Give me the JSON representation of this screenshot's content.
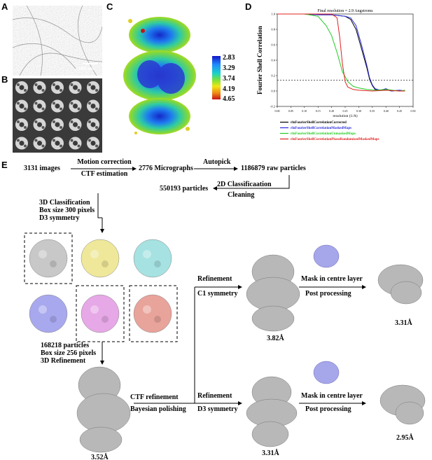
{
  "panels": {
    "a": "A",
    "b": "B",
    "c": "C",
    "d": "D",
    "e": "E"
  },
  "panel_a": {
    "scale_bar_label": "100 nm"
  },
  "panel_c": {
    "colorbar_ticks": [
      "2.83",
      "3.29",
      "3.74",
      "4.19",
      "4.65"
    ],
    "colors": [
      "#1414c8",
      "#1e8cff",
      "#19d2c8",
      "#78e13c",
      "#f0e614",
      "#f08c14",
      "#c81414"
    ]
  },
  "panel_d": {
    "title": "Final resolution = 2.9 Angstroms",
    "ylabel": "Fourier Shell Correlation",
    "xlabel": "resolution (1/A)",
    "xticks": [
      "0.00",
      "0.05",
      "0.10",
      "0.15",
      "0.20",
      "0.25",
      "0.30",
      "0.35",
      "0.40",
      "0.45",
      "0.50"
    ],
    "yticks": [
      "1.0",
      "0.8",
      "0.6",
      "0.4",
      "0.2",
      "0.0",
      "-0.2"
    ],
    "legend": [
      {
        "name": "rlnFourierShellCorrelationCorrected",
        "color": "#000000"
      },
      {
        "name": "rlnFourierShellCorrelationMaskedMaps",
        "color": "#2a2ae0"
      },
      {
        "name": "rlnFourierShellCorrelationUnmaskedMaps",
        "color": "#22cc22"
      },
      {
        "name": "rlnFourierShellCorrelationPhaseRandomizedMaskedMaps",
        "color": "#e02020"
      }
    ]
  },
  "chart_data": {
    "type": "line",
    "title": "Final resolution = 2.9 Angstroms",
    "xlabel": "resolution (1/A)",
    "ylabel": "Fourier Shell Correlation",
    "xlim": [
      0.0,
      0.5
    ],
    "ylim": [
      -0.2,
      1.0
    ],
    "threshold": 0.143,
    "series": [
      {
        "name": "rlnFourierShellCorrelationCorrected",
        "color": "#000000",
        "x": [
          0,
          0.05,
          0.1,
          0.15,
          0.2,
          0.25,
          0.27,
          0.29,
          0.31,
          0.33,
          0.34,
          0.35,
          0.36,
          0.38,
          0.4,
          0.42,
          0.45,
          0.47
        ],
        "y": [
          1,
          1,
          1,
          0.99,
          0.99,
          0.97,
          0.93,
          0.8,
          0.55,
          0.3,
          0.15,
          0.07,
          0.02,
          0.01,
          0.02,
          0.0,
          0.01,
          0.0
        ]
      },
      {
        "name": "rlnFourierShellCorrelationMaskedMaps",
        "color": "#2a2ae0",
        "x": [
          0,
          0.05,
          0.1,
          0.15,
          0.2,
          0.25,
          0.27,
          0.29,
          0.31,
          0.33,
          0.34,
          0.35,
          0.36,
          0.38,
          0.4,
          0.42,
          0.45,
          0.47
        ],
        "y": [
          1,
          1,
          1,
          0.99,
          0.99,
          0.97,
          0.95,
          0.85,
          0.6,
          0.33,
          0.17,
          0.08,
          0.03,
          0.01,
          0.03,
          0.0,
          0.01,
          0.0
        ]
      },
      {
        "name": "rlnFourierShellCorrelationUnmaskedMaps",
        "color": "#22cc22",
        "x": [
          0,
          0.05,
          0.1,
          0.15,
          0.18,
          0.2,
          0.22,
          0.24,
          0.26,
          0.28,
          0.3,
          0.33,
          0.36,
          0.4,
          0.45,
          0.47
        ],
        "y": [
          1,
          1,
          1,
          0.97,
          0.85,
          0.72,
          0.5,
          0.25,
          0.12,
          0.06,
          0.04,
          0.02,
          0.01,
          0.02,
          0.0,
          0.01
        ]
      },
      {
        "name": "rlnFourierShellCorrelationPhaseRandomizedMaskedMaps",
        "color": "#e02020",
        "x": [
          0,
          0.1,
          0.2,
          0.22,
          0.23,
          0.24,
          0.25,
          0.26,
          0.28,
          0.3,
          0.35,
          0.4,
          0.45,
          0.47
        ],
        "y": [
          1,
          1,
          1,
          0.95,
          0.7,
          0.35,
          0.12,
          0.05,
          0.02,
          0.01,
          0.0,
          0.01,
          0.0,
          0.0
        ]
      }
    ]
  },
  "panel_e": {
    "images_label": "3131 images",
    "motion_label": "Motion correction",
    "ctf_est_label": "CTF estimation",
    "micrographs_label": "2776 Micrographs",
    "autopick_label": "Autopick",
    "raw_particles_label": "1186879 raw particles",
    "class2d_label": "2D Classificaation",
    "cleaning_label": "Cleaning",
    "particles_label": "550193 particles",
    "class3d_line1": "3D Classification",
    "class3d_line2": "Box size 300 pixels",
    "class3d_line3": "D3 symmetry",
    "selected_line1": "168218 particles",
    "selected_line2": "Box size 256 pixels",
    "selected_line3": "3D Refinement",
    "refine_c1_line1": "Refinement",
    "refine_c1_line2": "C1 symmetry",
    "res_c1": "3.82Å",
    "mask_line1": "Mask in centre layer",
    "post_line1": "Post processing",
    "res_c1_post": "3.31Å",
    "ctf_ref_label": "CTF refinement",
    "bayes_label": "Bayesian polishing",
    "res_refine": "3.52Å",
    "refine_d3_line1": "Refinement",
    "refine_d3_line2": "D3 symmetry",
    "res_d3": "3.31Å",
    "mask_line2": "Mask in centre layer",
    "post_line2": "Post processing",
    "res_d3_post": "2.95Å",
    "class_colors": [
      "#c8c8c8",
      "#efe89a",
      "#a6e2e2",
      "#a8a8ee",
      "#e6a8e6",
      "#e8a39a"
    ]
  }
}
